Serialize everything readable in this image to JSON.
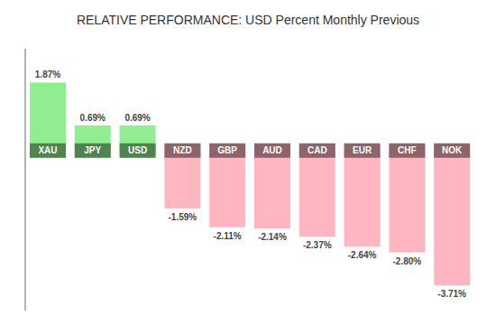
{
  "chart_data": {
    "type": "bar",
    "title": "RELATIVE PERFORMANCE: USD Percent Monthly Previous",
    "categories": [
      "XAU",
      "JPY",
      "USD",
      "NZD",
      "GBP",
      "AUD",
      "CAD",
      "EUR",
      "CHF",
      "NOK"
    ],
    "values": [
      1.87,
      0.69,
      0.69,
      -1.59,
      -2.11,
      -2.14,
      -2.37,
      -2.64,
      -2.8,
      -3.71
    ],
    "value_labels": [
      "1.87%",
      "0.69%",
      "0.69%",
      "-1.59%",
      "-2.11%",
      "-2.14%",
      "-2.37%",
      "-2.64%",
      "-2.80%",
      "-3.71%"
    ],
    "colors": [
      "#90EE90",
      "#90EE90",
      "#90EE90",
      "#FFB6C1",
      "#FFB6C1",
      "#FFB6C1",
      "#FFB6C1",
      "#FFB6C1",
      "#FFB6C1",
      "#FFB6C1"
    ],
    "ylim": [
      -4.4,
      2.8
    ],
    "data_labels": true,
    "tick_labels": false,
    "grid": false
  }
}
